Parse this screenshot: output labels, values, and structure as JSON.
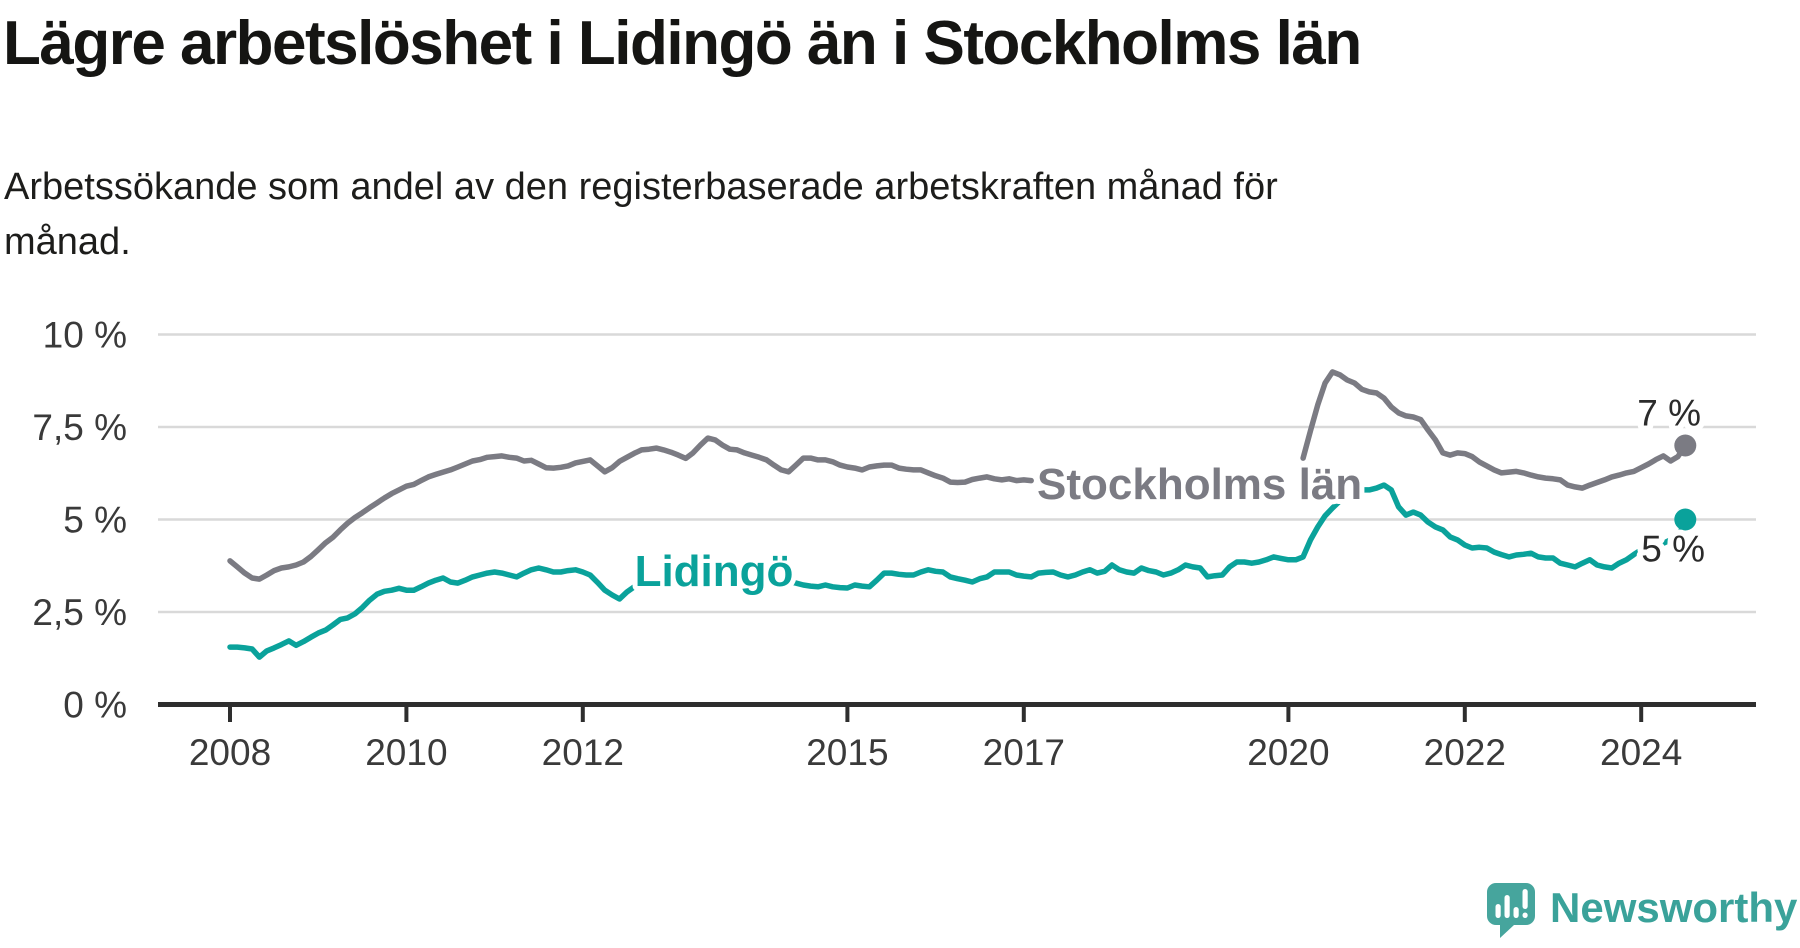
{
  "title": "Lägre arbetslöshet i Lidingö än i Stockholms län",
  "subtitle_lines": [
    "Arbetssökande som andel av den registerbaserade arbetskraften månad för",
    "månad."
  ],
  "branding": {
    "logo_text": "Newsworthy",
    "logo_color": "#46a59d",
    "text_color": "#3aa29a"
  },
  "colors": {
    "background": "#ffffff",
    "title": "#151513",
    "axis_text": "#3a3a3a",
    "gridline": "#d9d9d9",
    "axis_line": "#2e2e2e",
    "end_label": "#2b2b2b"
  },
  "chart_data": {
    "type": "line",
    "unit": "%",
    "frequency": "monthly",
    "start": "2008-01",
    "end": "2024-07",
    "grid": "horizontal",
    "ylim": [
      0,
      10
    ],
    "y_ticks": [
      {
        "value": 0,
        "label": "0 %"
      },
      {
        "value": 2.5,
        "label": "2,5 %"
      },
      {
        "value": 5,
        "label": "5 %"
      },
      {
        "value": 7.5,
        "label": "7,5 %"
      },
      {
        "value": 10,
        "label": "10 %"
      }
    ],
    "x_tick_years": [
      2008,
      2010,
      2012,
      2015,
      2017,
      2020,
      2022,
      2024
    ],
    "series": [
      {
        "name": "Stockholms län",
        "color": "#7b7b83",
        "end_label": "7 %",
        "last_value": 7.0,
        "values": [
          3.88,
          3.72,
          3.55,
          3.42,
          3.39,
          3.5,
          3.62,
          3.69,
          3.72,
          3.77,
          3.85,
          4.0,
          4.18,
          4.37,
          4.52,
          4.72,
          4.9,
          5.05,
          5.18,
          5.32,
          5.45,
          5.58,
          5.7,
          5.8,
          5.9,
          5.95,
          6.05,
          6.15,
          6.22,
          6.28,
          6.34,
          6.42,
          6.5,
          6.58,
          6.62,
          6.68,
          6.7,
          6.72,
          6.68,
          6.66,
          6.58,
          6.6,
          6.5,
          6.4,
          6.39,
          6.41,
          6.45,
          6.53,
          6.57,
          6.61,
          6.45,
          6.29,
          6.4,
          6.57,
          6.68,
          6.79,
          6.88,
          6.9,
          6.93,
          6.88,
          6.82,
          6.74,
          6.65,
          6.8,
          7.01,
          7.2,
          7.15,
          7.01,
          6.9,
          6.88,
          6.8,
          6.74,
          6.68,
          6.61,
          6.47,
          6.34,
          6.29,
          6.47,
          6.66,
          6.66,
          6.61,
          6.61,
          6.56,
          6.47,
          6.42,
          6.39,
          6.34,
          6.42,
          6.45,
          6.47,
          6.47,
          6.39,
          6.36,
          6.34,
          6.34,
          6.26,
          6.18,
          6.12,
          6.01,
          6.0,
          6.01,
          6.08,
          6.12,
          6.15,
          6.1,
          6.07,
          6.1,
          6.05,
          6.07,
          6.05,
          6.02,
          6.0,
          5.98,
          5.96,
          5.95,
          5.94,
          5.93,
          5.94,
          5.96,
          5.98,
          5.97,
          5.95,
          5.92,
          5.9,
          5.88,
          5.9,
          5.93,
          5.92,
          5.9,
          5.95,
          6.0,
          6.03,
          6.05,
          6.07,
          6.1,
          6.12,
          6.15,
          6.18,
          6.22,
          6.2,
          6.22,
          6.25,
          6.28,
          6.3,
          6.33,
          6.38,
          6.66,
          7.4,
          8.1,
          8.69,
          8.99,
          8.91,
          8.77,
          8.69,
          8.52,
          8.45,
          8.42,
          8.28,
          8.04,
          7.88,
          7.8,
          7.77,
          7.7,
          7.42,
          7.15,
          6.8,
          6.74,
          6.8,
          6.78,
          6.7,
          6.55,
          6.45,
          6.34,
          6.26,
          6.28,
          6.3,
          6.26,
          6.2,
          6.15,
          6.12,
          6.1,
          6.07,
          5.93,
          5.88,
          5.85,
          5.93,
          6.0,
          6.07,
          6.15,
          6.2,
          6.26,
          6.3,
          6.4,
          6.5,
          6.62,
          6.72,
          6.58,
          6.7,
          7.0
        ]
      },
      {
        "name": "Lidingö",
        "color": "#0aa29b",
        "end_label": "5 %",
        "last_value": 5.0,
        "values": [
          1.55,
          1.55,
          1.53,
          1.5,
          1.28,
          1.45,
          1.53,
          1.62,
          1.72,
          1.6,
          1.7,
          1.82,
          1.93,
          2.01,
          2.15,
          2.3,
          2.34,
          2.45,
          2.62,
          2.82,
          2.98,
          3.06,
          3.09,
          3.14,
          3.09,
          3.09,
          3.18,
          3.28,
          3.36,
          3.42,
          3.31,
          3.28,
          3.36,
          3.45,
          3.5,
          3.55,
          3.58,
          3.55,
          3.5,
          3.45,
          3.55,
          3.64,
          3.69,
          3.64,
          3.58,
          3.58,
          3.62,
          3.64,
          3.58,
          3.5,
          3.3,
          3.09,
          2.96,
          2.85,
          3.04,
          3.18,
          3.22,
          3.25,
          3.25,
          3.22,
          3.2,
          3.22,
          3.25,
          3.28,
          3.3,
          3.28,
          3.25,
          3.22,
          3.24,
          3.27,
          3.25,
          3.23,
          3.25,
          3.3,
          3.28,
          3.36,
          3.32,
          3.28,
          3.23,
          3.2,
          3.18,
          3.23,
          3.18,
          3.16,
          3.15,
          3.23,
          3.2,
          3.18,
          3.36,
          3.55,
          3.55,
          3.52,
          3.5,
          3.5,
          3.58,
          3.64,
          3.6,
          3.58,
          3.45,
          3.4,
          3.36,
          3.31,
          3.4,
          3.45,
          3.58,
          3.58,
          3.58,
          3.5,
          3.47,
          3.45,
          3.55,
          3.57,
          3.58,
          3.5,
          3.45,
          3.5,
          3.58,
          3.64,
          3.55,
          3.6,
          3.77,
          3.64,
          3.58,
          3.55,
          3.69,
          3.62,
          3.58,
          3.5,
          3.55,
          3.64,
          3.77,
          3.72,
          3.69,
          3.45,
          3.48,
          3.5,
          3.72,
          3.85,
          3.85,
          3.82,
          3.85,
          3.91,
          3.99,
          3.95,
          3.91,
          3.91,
          3.99,
          4.45,
          4.8,
          5.1,
          5.31,
          5.5,
          5.65,
          5.75,
          5.8,
          5.8,
          5.85,
          5.93,
          5.8,
          5.34,
          5.12,
          5.2,
          5.12,
          4.93,
          4.8,
          4.72,
          4.53,
          4.45,
          4.31,
          4.23,
          4.25,
          4.23,
          4.12,
          4.05,
          3.99,
          4.04,
          4.06,
          4.09,
          3.99,
          3.96,
          3.96,
          3.82,
          3.77,
          3.72,
          3.82,
          3.91,
          3.77,
          3.72,
          3.69,
          3.82,
          3.91,
          4.05,
          4.18,
          4.28,
          4.32,
          4.36,
          4.45,
          4.5,
          5.0
        ]
      }
    ]
  }
}
